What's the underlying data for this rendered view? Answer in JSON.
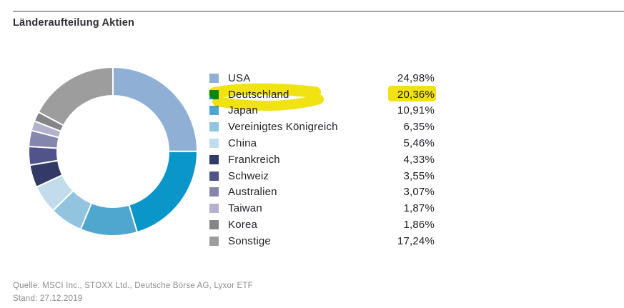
{
  "page": {
    "title": "Länderaufteilung Aktien"
  },
  "footer": {
    "source": "Quelle: MSCI Inc., STOXX Ltd., Deutsche Börse AG, Lyxor ETF",
    "stand": "Stand: 27.12.2019"
  },
  "colors": {
    "highlight_marker": "#f0e213",
    "rule_line": "#a3a3a6",
    "text_primary": "#1f1f26",
    "text_muted": "#8d8d91",
    "slice_gap": "#ffffff"
  },
  "chart_data": {
    "type": "pie",
    "subtype": "donut",
    "title": "Länderaufteilung Aktien",
    "legend_position": "right",
    "direction": "clockwise",
    "start_angle_deg": 0,
    "value_format": "percent, comma decimal separator",
    "categories": [
      "USA",
      "Deutschland",
      "Japan",
      "Vereinigtes Königreich",
      "China",
      "Frankreich",
      "Schweiz",
      "Australien",
      "Taiwan",
      "Korea",
      "Sonstige"
    ],
    "values": [
      24.98,
      20.36,
      10.91,
      6.35,
      5.46,
      4.33,
      3.55,
      3.07,
      1.87,
      1.86,
      17.24
    ],
    "display_values": [
      "24,98%",
      "20,36%",
      "10,91%",
      "6,35%",
      "5,46%",
      "4,33%",
      "3,55%",
      "3,07%",
      "1,87%",
      "1,86%",
      "17,24%"
    ],
    "colors": [
      "#8fb0d4",
      "#0a96c9",
      "#4fa6cf",
      "#92c4e0",
      "#c2dcec",
      "#333a68",
      "#51548a",
      "#8486ae",
      "#b3b1cd",
      "#858588",
      "#9d9d9d"
    ],
    "highlight": {
      "index": 1,
      "category": "Deutschland",
      "display_value": "20,36%",
      "style": "hand-drawn yellow marker over legend label and value"
    }
  }
}
